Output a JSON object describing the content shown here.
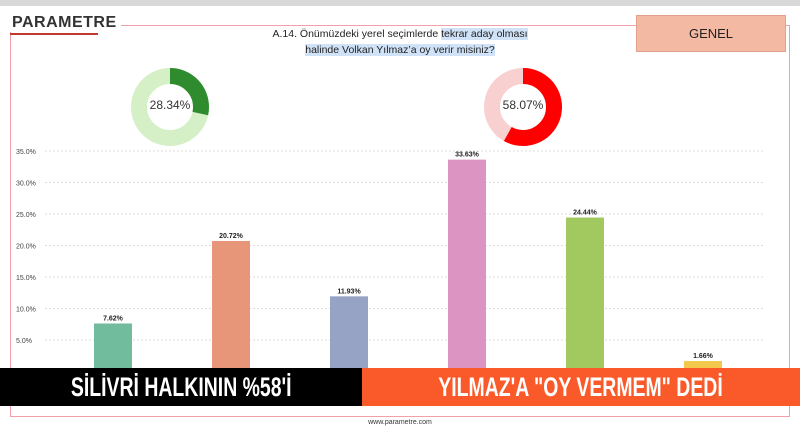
{
  "brand": "PARAMETRE",
  "question": {
    "prefix": "A.14. Önümüzdeki yerel seçimlerde ",
    "highlight1": "tekrar aday olması",
    "highlight2": "halinde Volkan Yılmaz’a oy verir misiniz?"
  },
  "segment_label": "GENEL",
  "donuts": [
    {
      "label": "28.34%",
      "value": 28.34,
      "color": "#2e8b2e",
      "track": "#d5f0c6"
    },
    {
      "label": "58.07%",
      "value": 58.07,
      "color": "#ff0000",
      "track": "#f8d0d0"
    }
  ],
  "chart_data": {
    "type": "bar",
    "categories": [
      "",
      "",
      "",
      "",
      "",
      ""
    ],
    "values": [
      7.62,
      20.72,
      11.93,
      33.63,
      24.44,
      1.66
    ],
    "labels": [
      "7.62%",
      "20.72%",
      "11.93%",
      "33.63%",
      "24.44%",
      "1.66%"
    ],
    "colors": [
      "#72bc9e",
      "#e8967a",
      "#97a3c4",
      "#dc94c3",
      "#a2c960",
      "#f2c94c"
    ],
    "ylim": [
      0,
      35
    ],
    "yticks": [
      "5.0%",
      "10.0%",
      "15.0%",
      "20.0%",
      "25.0%",
      "30.0%",
      "35.0%"
    ],
    "grid": true
  },
  "banner": {
    "left": "SİLİVRİ HALKININ %58'İ",
    "right": "YILMAZ'A \"OY VERMEM\" DEDİ"
  },
  "footer": "www.parametre.com"
}
